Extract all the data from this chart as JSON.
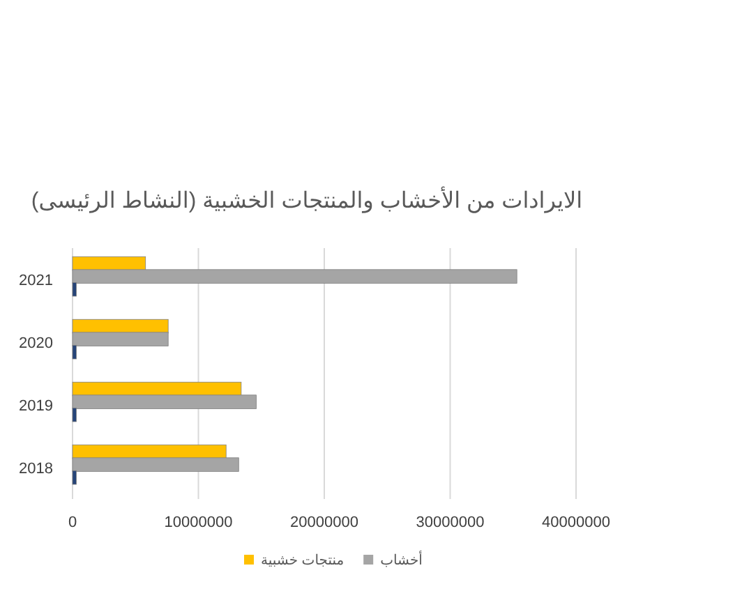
{
  "chart_data": {
    "type": "bar",
    "orientation": "horizontal",
    "title": "الايرادات من الأخشاب والمنتجات الخشبية (النشاط الرئيسى)",
    "categories": [
      "2021",
      "2020",
      "2019",
      "2018"
    ],
    "series": [
      {
        "name": "منتجات خشبية",
        "color": "#ffc000",
        "values": [
          5800000,
          7600000,
          13400000,
          12200000
        ]
      },
      {
        "name": "أخشاب",
        "color": "#a5a5a5",
        "values": [
          35300000,
          7600000,
          14600000,
          13200000
        ]
      },
      {
        "color": "#264478",
        "values": [
          300000,
          300000,
          300000,
          300000
        ]
      }
    ],
    "xlim": [
      0,
      40000000
    ],
    "xticks": [
      0,
      10000000,
      20000000,
      30000000,
      40000000
    ],
    "grid": "x",
    "legend": "bottom"
  }
}
